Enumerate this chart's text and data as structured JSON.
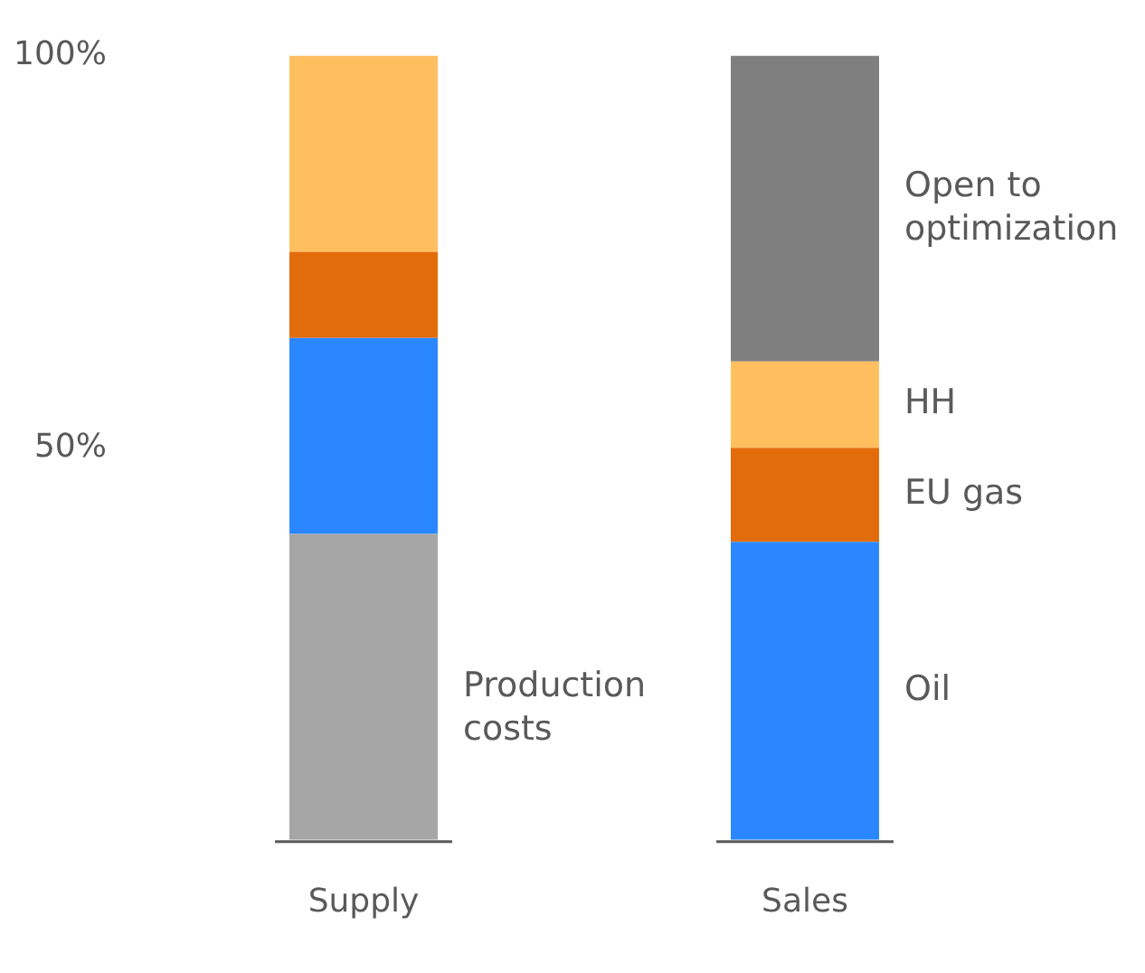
{
  "chart_data": {
    "type": "bar",
    "stacked": true,
    "categories": [
      "Supply",
      "Sales"
    ],
    "series": [
      {
        "colors": [
          "#a6a6a6",
          "#2b87ff"
        ],
        "values": [
          39,
          38
        ]
      },
      {
        "colors": [
          "#2b87ff",
          "#e36c0a"
        ],
        "values": [
          25,
          12
        ]
      },
      {
        "colors": [
          "#e36c0a",
          "#ffbf5f"
        ],
        "values": [
          11,
          11
        ]
      },
      {
        "colors": [
          "#ffbf5f",
          "#7f7f7f"
        ],
        "values": [
          25,
          39
        ]
      }
    ],
    "ylim": [
      0,
      100
    ],
    "yticks": [
      {
        "value": 50,
        "label": "50%"
      },
      {
        "value": 100,
        "label": "100%"
      }
    ],
    "grid": false,
    "annotations": [
      "Production costs",
      "Oil",
      "EU gas",
      "HH",
      "Open to optimization"
    ]
  }
}
